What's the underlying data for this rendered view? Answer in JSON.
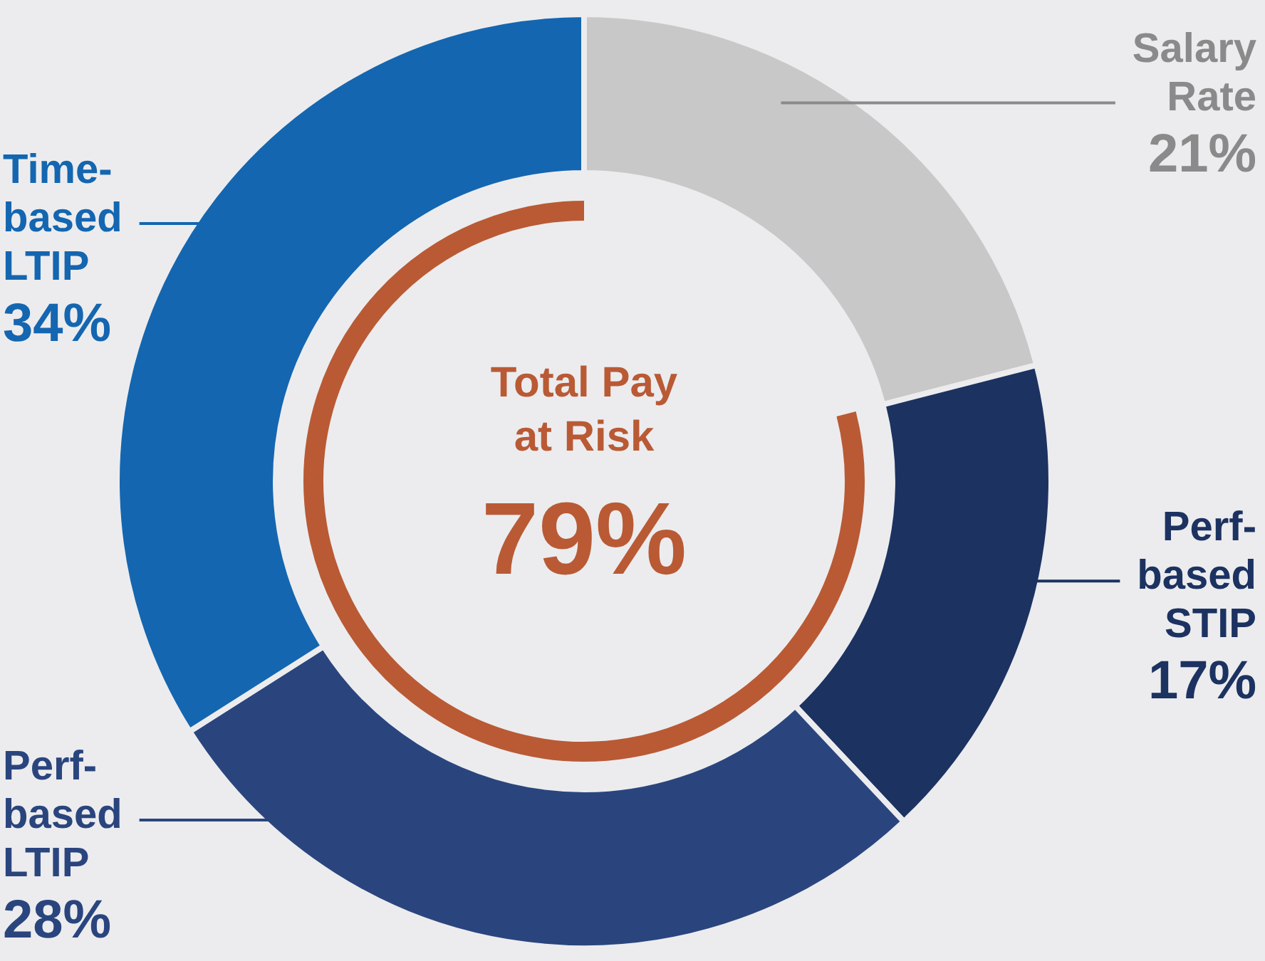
{
  "chart_data": {
    "type": "donut",
    "categories": [
      "Salary Rate",
      "Perf-based STIP",
      "Perf-based LTIP",
      "Time-based LTIP"
    ],
    "values": [
      21,
      17,
      28,
      34
    ],
    "colors": [
      "#c8c8c8",
      "#1c3261",
      "#2a457e",
      "#1466b0"
    ],
    "value_labels": [
      "21%",
      "17%",
      "28%",
      "34%"
    ],
    "annotations": [
      "Total Pay at Risk",
      "79%"
    ],
    "legend": false
  }
}
